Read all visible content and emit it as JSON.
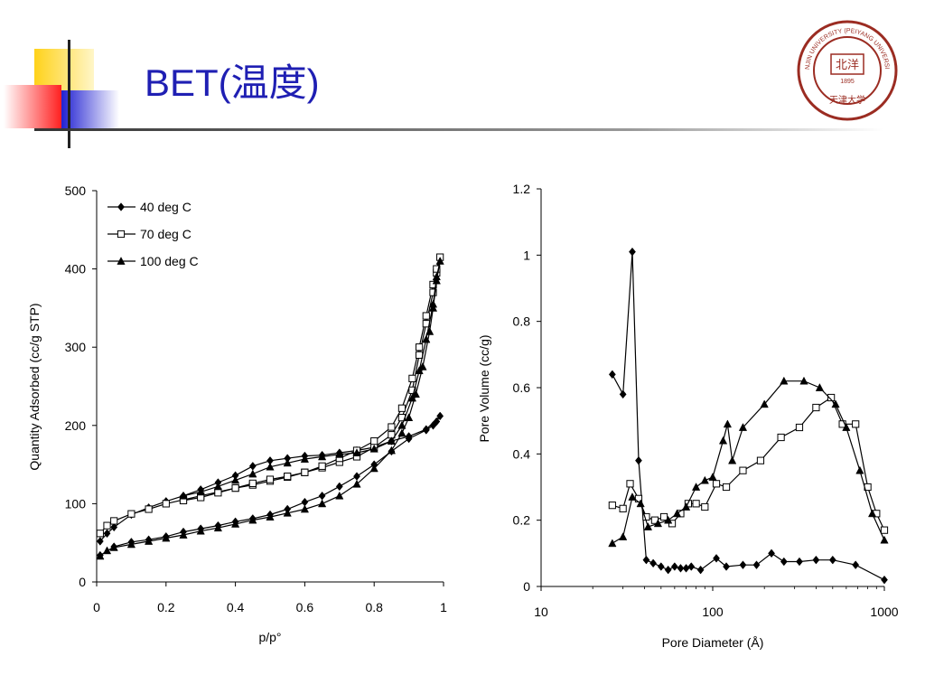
{
  "slide": {
    "title": "BET(温度)",
    "seal_text": "TIANJIN UNIVERSITY (PEIYANG UNIVERSITY)",
    "seal_year": "1895",
    "seal_bottom": "天津大学",
    "seal_center": "北洋",
    "accent_blue": "#1f1fb3",
    "seal_red": "#9b2c22"
  },
  "chart_data": [
    {
      "type": "line",
      "xlabel": "p/p°",
      "ylabel": "Quantity Adsorbed (cc/g STP)",
      "xlim": [
        0,
        1
      ],
      "ylim": [
        0,
        500
      ],
      "xticks": [
        "0",
        "0.2",
        "0.4",
        "0.6",
        "0.8",
        "1"
      ],
      "yticks": [
        "0",
        "100",
        "200",
        "300",
        "400",
        "500"
      ],
      "legend_position": "top-left",
      "series": [
        {
          "name": "40 deg C",
          "marker": "diamond",
          "points": [
            [
              0.01,
              52
            ],
            [
              0.03,
              62
            ],
            [
              0.05,
              70
            ],
            [
              0.1,
              86
            ],
            [
              0.15,
              95
            ],
            [
              0.2,
              103
            ],
            [
              0.25,
              110
            ],
            [
              0.3,
              118
            ],
            [
              0.35,
              127
            ],
            [
              0.4,
              136
            ],
            [
              0.45,
              148
            ],
            [
              0.5,
              155
            ],
            [
              0.55,
              158
            ],
            [
              0.6,
              161
            ],
            [
              0.65,
              162
            ],
            [
              0.7,
              165
            ],
            [
              0.75,
              168
            ],
            [
              0.8,
              172
            ],
            [
              0.85,
              180
            ],
            [
              0.9,
              186
            ],
            [
              0.95,
              195
            ],
            [
              0.99,
              212
            ],
            [
              0.98,
              205
            ],
            [
              0.97,
              200
            ],
            [
              0.95,
              194
            ],
            [
              0.9,
              183
            ],
            [
              0.85,
              167
            ],
            [
              0.8,
              150
            ],
            [
              0.75,
              135
            ],
            [
              0.7,
              122
            ],
            [
              0.65,
              110
            ],
            [
              0.6,
              102
            ],
            [
              0.55,
              93
            ],
            [
              0.5,
              86
            ],
            [
              0.45,
              81
            ],
            [
              0.4,
              77
            ],
            [
              0.35,
              72
            ],
            [
              0.3,
              68
            ],
            [
              0.25,
              64
            ],
            [
              0.2,
              58
            ],
            [
              0.15,
              54
            ],
            [
              0.1,
              51
            ],
            [
              0.05,
              45
            ],
            [
              0.01,
              34
            ]
          ]
        },
        {
          "name": "70 deg C",
          "marker": "square",
          "points": [
            [
              0.01,
              62
            ],
            [
              0.03,
              72
            ],
            [
              0.05,
              78
            ],
            [
              0.1,
              87
            ],
            [
              0.15,
              93
            ],
            [
              0.2,
              100
            ],
            [
              0.25,
              105
            ],
            [
              0.3,
              110
            ],
            [
              0.35,
              115
            ],
            [
              0.4,
              120
            ],
            [
              0.45,
              124
            ],
            [
              0.5,
              129
            ],
            [
              0.55,
              134
            ],
            [
              0.6,
              140
            ],
            [
              0.65,
              146
            ],
            [
              0.7,
              153
            ],
            [
              0.75,
              160
            ],
            [
              0.8,
              172
            ],
            [
              0.85,
              188
            ],
            [
              0.88,
              210
            ],
            [
              0.91,
              245
            ],
            [
              0.93,
              290
            ],
            [
              0.95,
              330
            ],
            [
              0.97,
              370
            ],
            [
              0.98,
              395
            ],
            [
              0.99,
              415
            ],
            [
              0.98,
              400
            ],
            [
              0.97,
              380
            ],
            [
              0.95,
              340
            ],
            [
              0.93,
              300
            ],
            [
              0.91,
              260
            ],
            [
              0.88,
              222
            ],
            [
              0.85,
              198
            ],
            [
              0.8,
              180
            ],
            [
              0.75,
              168
            ],
            [
              0.7,
              158
            ],
            [
              0.65,
              148
            ],
            [
              0.6,
              140
            ],
            [
              0.55,
              135
            ],
            [
              0.5,
              131
            ],
            [
              0.45,
              126
            ],
            [
              0.4,
              120
            ],
            [
              0.35,
              114
            ],
            [
              0.3,
              108
            ],
            [
              0.25,
              104
            ]
          ]
        },
        {
          "name": "100 deg C",
          "marker": "triangle",
          "points": [
            [
              0.01,
              33
            ],
            [
              0.03,
              40
            ],
            [
              0.05,
              44
            ],
            [
              0.1,
              48
            ],
            [
              0.15,
              52
            ],
            [
              0.2,
              56
            ],
            [
              0.25,
              60
            ],
            [
              0.3,
              65
            ],
            [
              0.35,
              69
            ],
            [
              0.4,
              74
            ],
            [
              0.45,
              79
            ],
            [
              0.5,
              83
            ],
            [
              0.55,
              88
            ],
            [
              0.6,
              93
            ],
            [
              0.65,
              100
            ],
            [
              0.7,
              110
            ],
            [
              0.75,
              125
            ],
            [
              0.8,
              145
            ],
            [
              0.85,
              168
            ],
            [
              0.88,
              190
            ],
            [
              0.9,
              210
            ],
            [
              0.92,
              240
            ],
            [
              0.94,
              275
            ],
            [
              0.96,
              320
            ],
            [
              0.97,
              350
            ],
            [
              0.98,
              385
            ],
            [
              0.99,
              410
            ],
            [
              0.98,
              390
            ],
            [
              0.97,
              355
            ],
            [
              0.95,
              310
            ],
            [
              0.93,
              270
            ],
            [
              0.91,
              235
            ],
            [
              0.88,
              200
            ],
            [
              0.85,
              180
            ],
            [
              0.8,
              170
            ],
            [
              0.75,
              165
            ],
            [
              0.7,
              163
            ],
            [
              0.65,
              160
            ],
            [
              0.6,
              157
            ],
            [
              0.55,
              152
            ],
            [
              0.5,
              147
            ],
            [
              0.45,
              138
            ],
            [
              0.4,
              130
            ],
            [
              0.35,
              122
            ],
            [
              0.3,
              115
            ],
            [
              0.25,
              110
            ]
          ]
        }
      ]
    },
    {
      "type": "line",
      "xlabel": "Pore Diameter (Å)",
      "ylabel": "Pore Volume (cc/g)",
      "xscale": "log",
      "xlim": [
        10,
        1000
      ],
      "ylim": [
        0,
        1.2
      ],
      "xticks": [
        "10",
        "100",
        "1000"
      ],
      "yticks": [
        "0",
        "0.2",
        "0.4",
        "0.6",
        "0.8",
        "1",
        "1.2"
      ],
      "series": [
        {
          "marker": "diamond",
          "points": [
            [
              26,
              0.64
            ],
            [
              30,
              0.58
            ],
            [
              34,
              1.01
            ],
            [
              37,
              0.38
            ],
            [
              41,
              0.08
            ],
            [
              45,
              0.07
            ],
            [
              50,
              0.06
            ],
            [
              55,
              0.05
            ],
            [
              60,
              0.06
            ],
            [
              65,
              0.055
            ],
            [
              70,
              0.055
            ],
            [
              75,
              0.06
            ],
            [
              85,
              0.05
            ],
            [
              105,
              0.085
            ],
            [
              120,
              0.06
            ],
            [
              150,
              0.065
            ],
            [
              180,
              0.065
            ],
            [
              220,
              0.1
            ],
            [
              260,
              0.075
            ],
            [
              320,
              0.075
            ],
            [
              400,
              0.08
            ],
            [
              500,
              0.08
            ],
            [
              680,
              0.065
            ],
            [
              1000,
              0.02
            ]
          ]
        },
        {
          "marker": "square",
          "points": [
            [
              26,
              0.245
            ],
            [
              30,
              0.235
            ],
            [
              33,
              0.31
            ],
            [
              37,
              0.265
            ],
            [
              41,
              0.21
            ],
            [
              46,
              0.2
            ],
            [
              52,
              0.21
            ],
            [
              58,
              0.19
            ],
            [
              65,
              0.22
            ],
            [
              72,
              0.25
            ],
            [
              80,
              0.25
            ],
            [
              90,
              0.24
            ],
            [
              105,
              0.31
            ],
            [
              120,
              0.3
            ],
            [
              150,
              0.35
            ],
            [
              190,
              0.38
            ],
            [
              250,
              0.45
            ],
            [
              320,
              0.48
            ],
            [
              400,
              0.54
            ],
            [
              490,
              0.57
            ],
            [
              570,
              0.49
            ],
            [
              680,
              0.49
            ],
            [
              800,
              0.3
            ],
            [
              900,
              0.22
            ],
            [
              1000,
              0.17
            ]
          ]
        },
        {
          "marker": "triangle",
          "points": [
            [
              26,
              0.13
            ],
            [
              30,
              0.15
            ],
            [
              34,
              0.27
            ],
            [
              38,
              0.25
            ],
            [
              42,
              0.18
            ],
            [
              48,
              0.19
            ],
            [
              55,
              0.2
            ],
            [
              62,
              0.22
            ],
            [
              70,
              0.24
            ],
            [
              80,
              0.3
            ],
            [
              90,
              0.32
            ],
            [
              100,
              0.33
            ],
            [
              115,
              0.44
            ],
            [
              122,
              0.49
            ],
            [
              130,
              0.38
            ],
            [
              150,
              0.48
            ],
            [
              200,
              0.55
            ],
            [
              260,
              0.62
            ],
            [
              340,
              0.62
            ],
            [
              420,
              0.6
            ],
            [
              520,
              0.55
            ],
            [
              600,
              0.48
            ],
            [
              720,
              0.35
            ],
            [
              850,
              0.22
            ],
            [
              1000,
              0.14
            ]
          ]
        }
      ]
    }
  ]
}
